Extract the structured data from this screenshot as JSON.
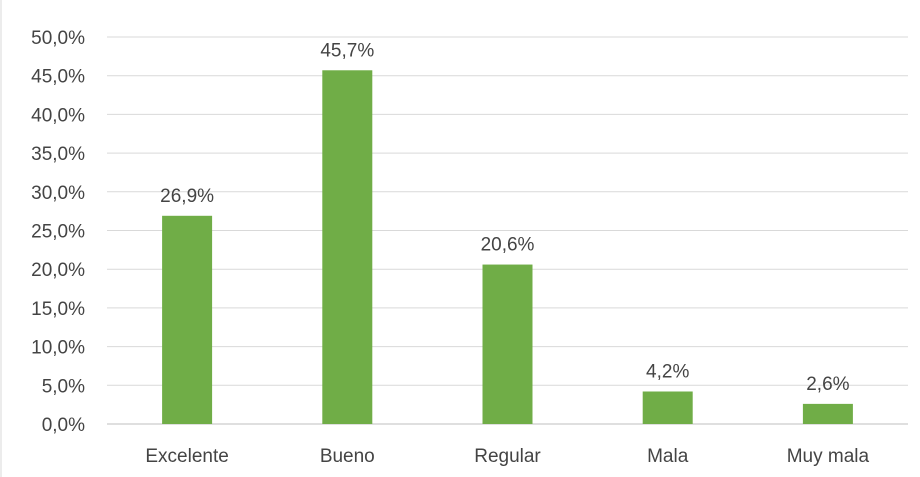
{
  "chart_data": {
    "type": "bar",
    "title": "",
    "xlabel": "",
    "ylabel": "",
    "categories": [
      "Excelente",
      "Bueno",
      "Regular",
      "Mala",
      "Muy mala"
    ],
    "values": [
      26.9,
      45.7,
      20.6,
      4.2,
      2.6
    ],
    "value_labels": [
      "26,9%",
      "45,7%",
      "20,6%",
      "4,2%",
      "2,6%"
    ],
    "y_ticks": [
      "0,0%",
      "5,0%",
      "10,0%",
      "15,0%",
      "20,0%",
      "25,0%",
      "30,0%",
      "35,0%",
      "40,0%",
      "45,0%",
      "50,0%"
    ],
    "ylim": [
      0,
      50
    ],
    "grid": true,
    "legend": "none",
    "bar_color": "#70ad47",
    "grid_color": "#d9d9d9",
    "axis_color": "#bfbfbf"
  }
}
